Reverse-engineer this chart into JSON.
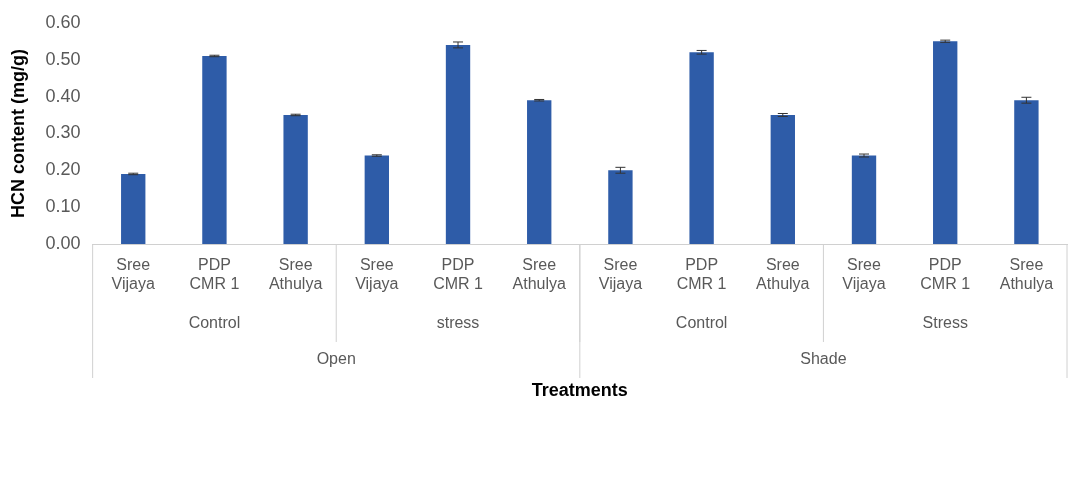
{
  "chart_data": {
    "type": "bar",
    "xlabel": "Treatments",
    "ylabel": "HCN content (mg/g)",
    "categories": [
      "Sree Vijaya",
      "PDP CMR 1",
      "Sree Athulya",
      "Sree Vijaya",
      "PDP CMR 1",
      "Sree Athulya",
      "Sree Vijaya",
      "PDP CMR 1",
      "Sree Athulya",
      "Sree Vijaya",
      "PDP CMR 1",
      "Sree Athulya"
    ],
    "values": [
      0.19,
      0.51,
      0.35,
      0.24,
      0.54,
      0.39,
      0.2,
      0.52,
      0.35,
      0.24,
      0.55,
      0.39
    ],
    "errors": [
      0.002,
      0.002,
      0.002,
      0.002,
      0.008,
      0.002,
      0.008,
      0.005,
      0.004,
      0.004,
      0.003,
      0.008
    ],
    "color": "#2e5ca8",
    "ylim": [
      0,
      0.6
    ],
    "yticks": [
      {
        "value": 0,
        "label": "0.00"
      },
      {
        "value": 0.1,
        "label": "0.10"
      },
      {
        "value": 0.2,
        "label": "0.20"
      },
      {
        "value": 0.3,
        "label": "0.30"
      },
      {
        "value": 0.4,
        "label": "0.40"
      },
      {
        "value": 0.5,
        "label": "0.50"
      },
      {
        "value": 0.6,
        "label": "0.60"
      }
    ],
    "grid": false,
    "legend": false,
    "annotations": [
      "Control",
      "stress",
      "Control",
      "Stress",
      "Open",
      "Shade"
    ]
  }
}
